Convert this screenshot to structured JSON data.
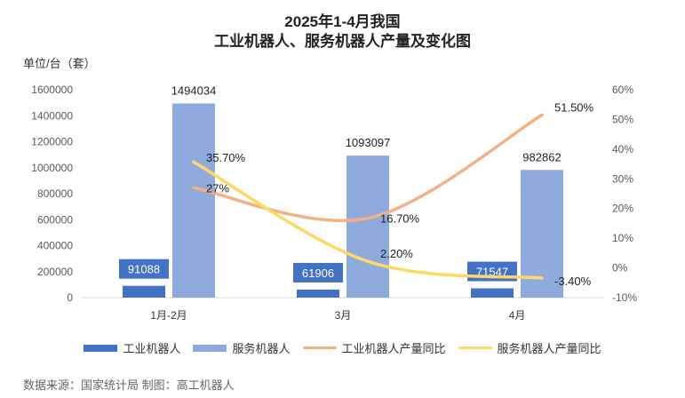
{
  "chart_data": {
    "type": "bar",
    "title": "2025年1-4月我国",
    "subtitle": "工业机器人、服务机器人产量及变化图",
    "unit_label": "单位/台（套）",
    "categories": [
      "1月-2月",
      "3月",
      "4月"
    ],
    "series": [
      {
        "name": "工业机器人",
        "kind": "bar",
        "axis": "left",
        "color": "#4472C4",
        "values": [
          91088,
          61906,
          71547
        ],
        "labels": [
          "91088",
          "61906",
          "71547"
        ]
      },
      {
        "name": "服务机器人",
        "kind": "bar",
        "axis": "left",
        "color": "#8FAADC",
        "values": [
          1494034,
          1093097,
          982862
        ],
        "labels": [
          "1494034",
          "1093097",
          "982862"
        ]
      },
      {
        "name": "工业机器人产量同比",
        "kind": "line",
        "axis": "right",
        "color": "#F4B183",
        "values": [
          27,
          16.7,
          51.5
        ],
        "labels": [
          "27%",
          "16.70%",
          "51.50%"
        ]
      },
      {
        "name": "服务机器人产量同比",
        "kind": "line",
        "axis": "right",
        "color": "#FFD966",
        "values": [
          35.7,
          2.2,
          -3.4
        ],
        "labels": [
          "35.70%",
          "2.20%",
          "-3.40%"
        ]
      }
    ],
    "y_left": {
      "min": 0,
      "max": 1600000,
      "ticks": [
        "0",
        "200000",
        "400000",
        "600000",
        "800000",
        "1000000",
        "1200000",
        "1400000",
        "1600000"
      ]
    },
    "y_right": {
      "min": -10,
      "max": 60,
      "ticks": [
        "-10%",
        "0%",
        "10%",
        "20%",
        "30%",
        "40%",
        "50%",
        "60%"
      ]
    },
    "grid": false,
    "legend_position": "bottom"
  },
  "footer": {
    "source": "数据来源：国家统计局 制图：高工机器人"
  }
}
